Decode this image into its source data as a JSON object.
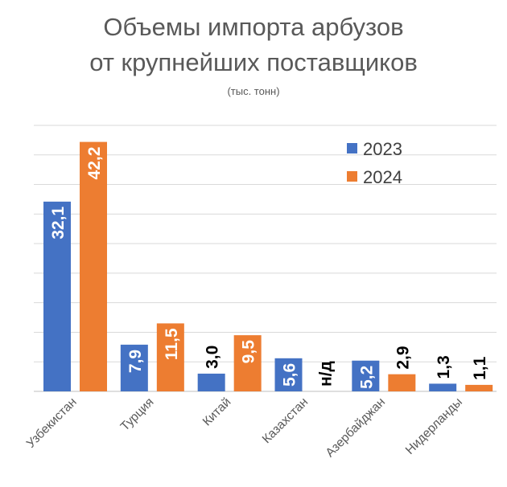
{
  "chart_data": {
    "type": "bar",
    "title_line1": "Объемы импорта арбузов",
    "title_line2": "от крупнейших поставщиков",
    "subtitle": "(тыс. тонн)",
    "xlabel": "",
    "ylabel": "",
    "ylim": [
      0,
      45
    ],
    "grid": true,
    "legend_position": "top-right",
    "categories": [
      "Узбекистан",
      "Турция",
      "Китай",
      "Казахстан",
      "Азербайджан",
      "Нидерланды"
    ],
    "series": [
      {
        "name": "2023",
        "color": "#4472C4",
        "values": [
          32.1,
          7.9,
          3.0,
          5.6,
          5.2,
          1.3
        ],
        "labels": [
          "32,1",
          "7,9",
          "3,0",
          "5,6",
          "5,2",
          "1,3"
        ]
      },
      {
        "name": "2024",
        "color": "#ED7D31",
        "values": [
          42.2,
          11.5,
          9.5,
          null,
          2.9,
          1.1
        ],
        "labels": [
          "42,2",
          "11,5",
          "9,5",
          "н/д",
          "2,9",
          "1,1"
        ]
      }
    ]
  }
}
